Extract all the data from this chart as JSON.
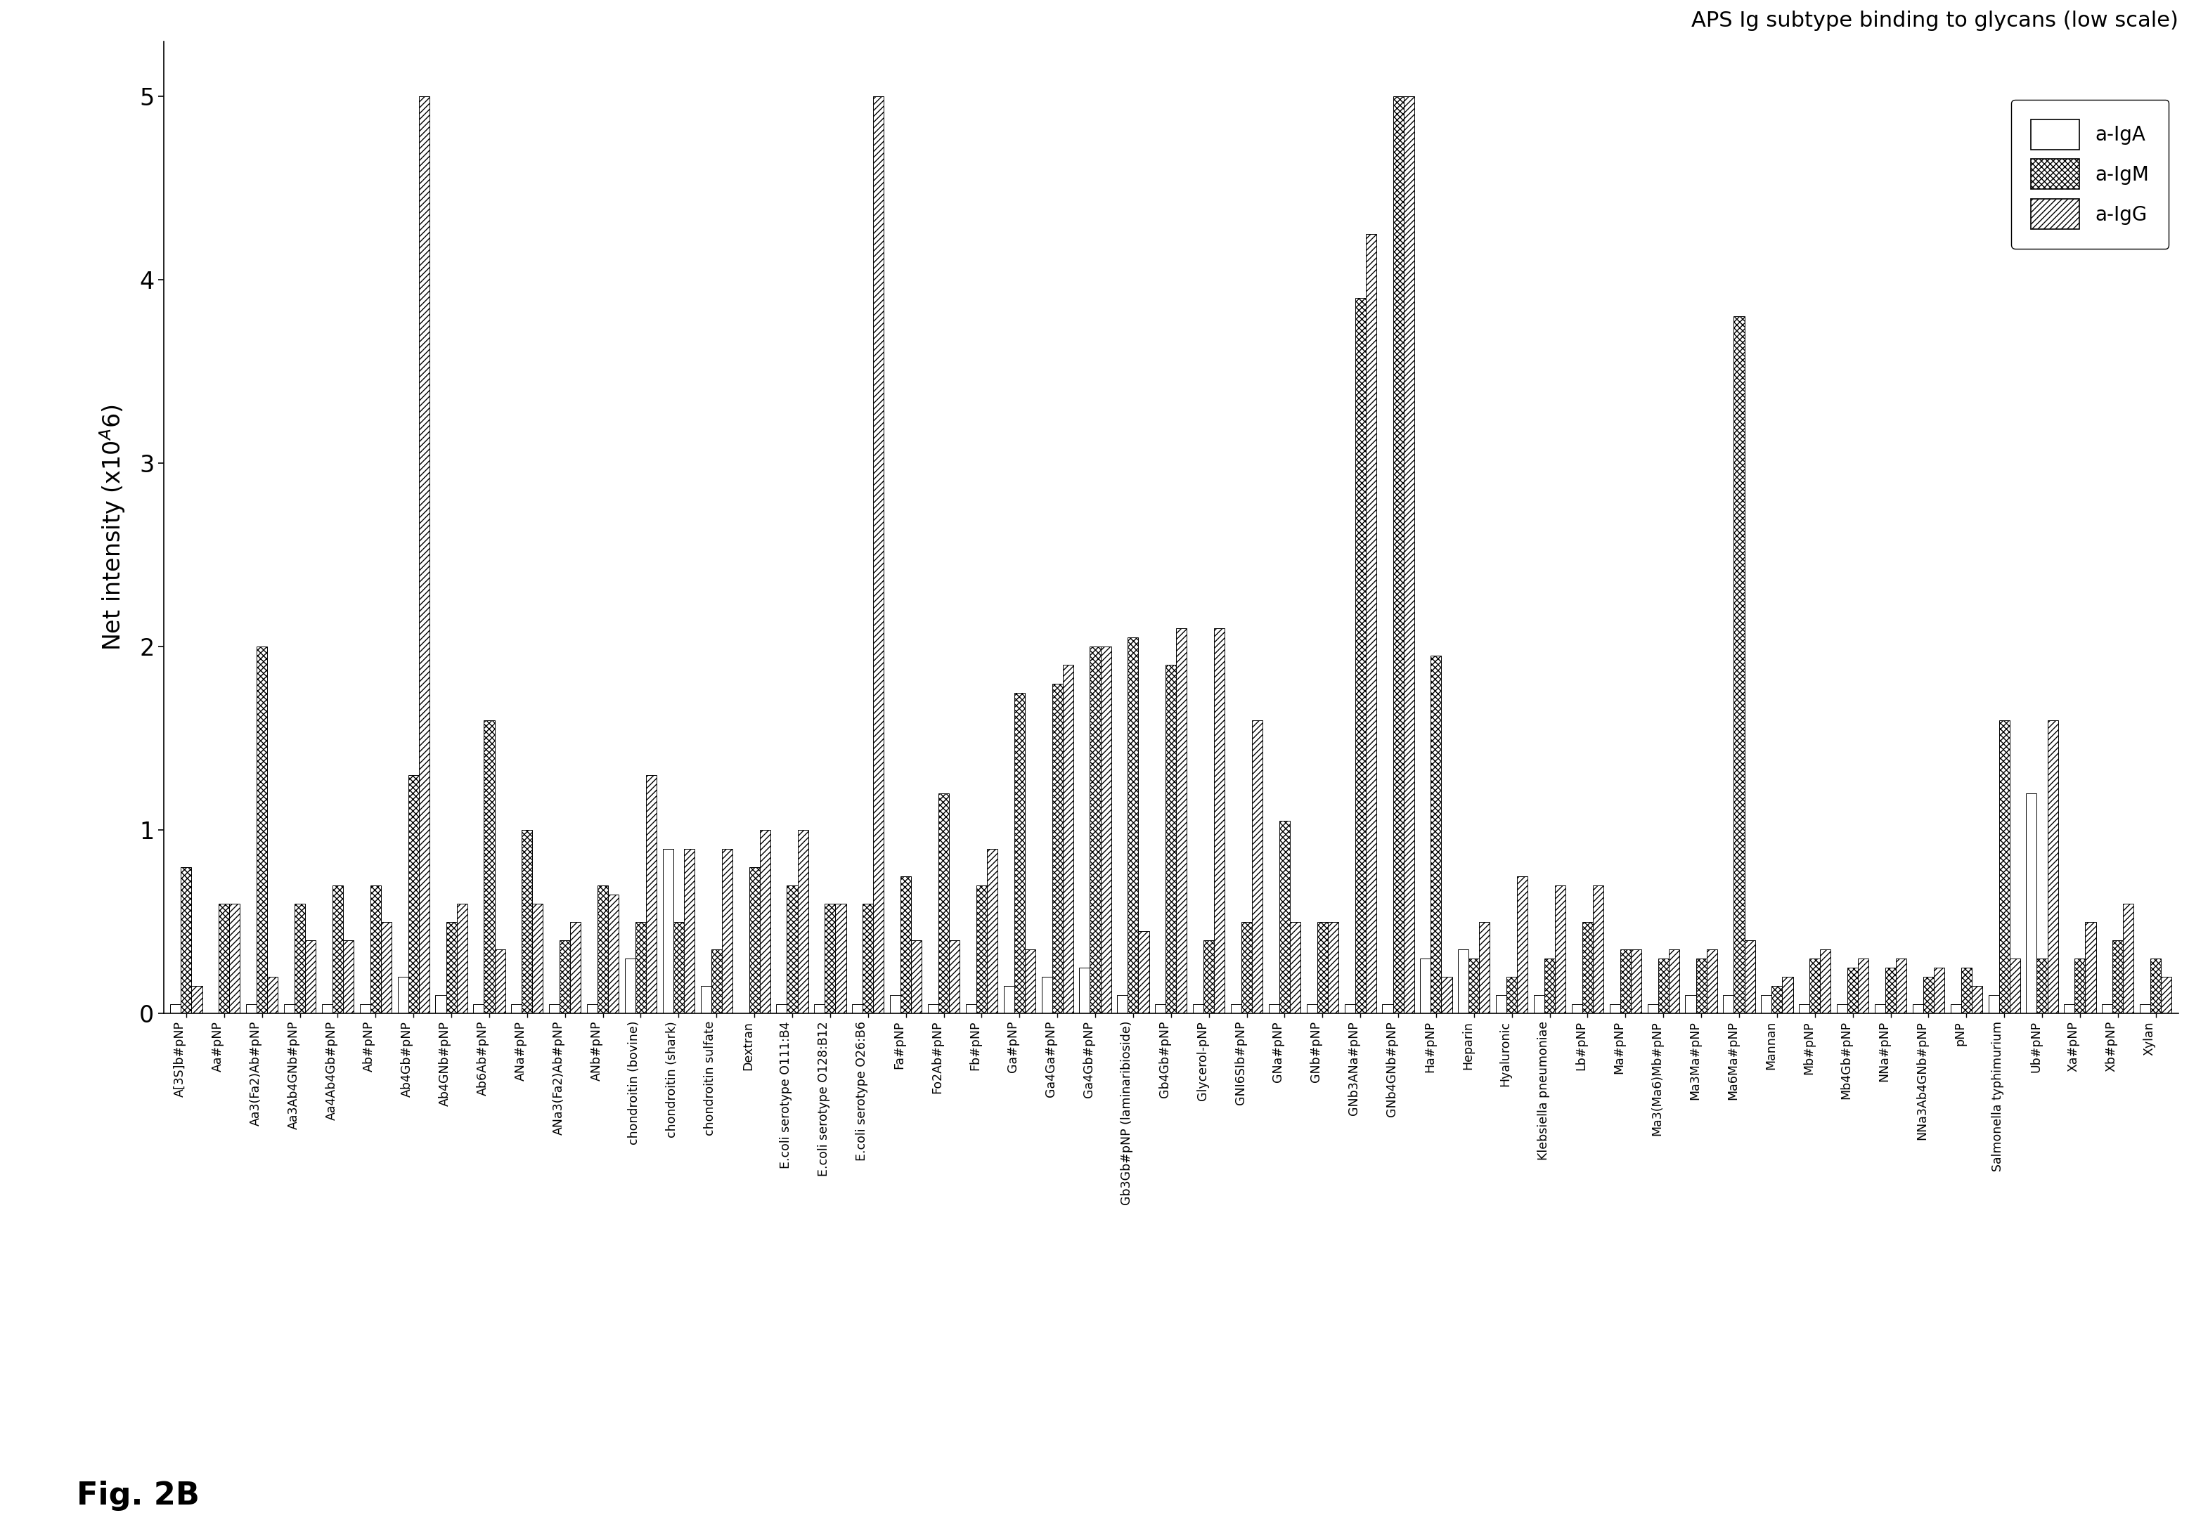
{
  "title": "APS Ig subtype binding to glycans (low scale)",
  "ylabel": "Net intensity (x10ᴬ6)",
  "ylim": [
    0,
    5.3
  ],
  "yticks": [
    0,
    1,
    2,
    3,
    4,
    5
  ],
  "legend_labels": [
    "a-IgA",
    "a-IgM",
    "a-IgG"
  ],
  "categories": [
    "A[3S]b#pNP",
    "Aa#pNP",
    "Aa3(Fa2)Ab#pNP",
    "Aa3Ab4GNb#pNP",
    "Aa4Ab4Gb#pNP",
    "Ab#pNP",
    "Ab4Gb#pNP",
    "Ab4GNb#pNP",
    "Ab6Ab#pNP",
    "ANa#pNP",
    "ANa3(Fa2)Ab#pNP",
    "ANb#pNP",
    "chondroitin (bovine)",
    "chondroitin (shark)",
    "chondroitin sulfate",
    "Dextran",
    "E.coli serotype O111:B4",
    "E.coli serotype O128:B12",
    "E.coli serotype O26:B6",
    "Fa#pNP",
    "Fo2Ab#pNP",
    "Fb#pNP",
    "Ga#pNP",
    "Ga4Ga#pNP",
    "Ga4Gb#pNP",
    "Gb3Gb#pNP (laminaribioside)",
    "Gb4Gb#pNP",
    "Glycerol-pNP",
    "GNI6SIb#pNP",
    "GNa#pNP",
    "GNb#pNP",
    "GNb3ANa#pNP",
    "GNb4GNb#pNP",
    "Ha#pNP",
    "Heparin",
    "Hyaluronic",
    "Klebsiella pneumoniae",
    "Lb#pNP",
    "Ma#pNP",
    "Ma3(Ma6)Mb#pNP",
    "Ma3Ma#pNP",
    "Ma6Ma#pNP",
    "Mannan",
    "Mb#pNP",
    "Mb4Gb#pNP",
    "NNa#pNP",
    "NNa3Ab4GNb#pNP",
    "pNP",
    "Salmonella typhimurium",
    "Ub#pNP",
    "Xa#pNP",
    "Xb#pNP",
    "Xylan"
  ],
  "IgA": [
    0.05,
    0.0,
    0.05,
    0.05,
    0.05,
    0.05,
    0.2,
    0.1,
    0.05,
    0.05,
    0.05,
    0.05,
    0.3,
    0.9,
    0.15,
    0.0,
    0.05,
    0.05,
    0.05,
    0.1,
    0.05,
    0.05,
    0.15,
    0.2,
    0.25,
    0.1,
    0.05,
    0.05,
    0.05,
    0.05,
    0.05,
    0.05,
    0.05,
    0.3,
    0.35,
    0.1,
    0.1,
    0.05,
    0.05,
    0.05,
    0.1,
    0.1,
    0.1,
    0.05,
    0.05,
    0.05,
    0.05,
    0.05,
    0.1,
    1.2,
    0.05,
    0.05,
    0.05
  ],
  "IgM": [
    0.8,
    0.6,
    2.0,
    0.6,
    0.7,
    0.7,
    1.3,
    0.5,
    1.6,
    1.0,
    0.4,
    0.7,
    0.5,
    0.5,
    0.35,
    0.8,
    0.7,
    0.6,
    0.6,
    0.75,
    1.2,
    0.7,
    1.75,
    1.8,
    2.0,
    2.05,
    1.9,
    0.4,
    0.5,
    1.05,
    0.5,
    3.9,
    5.0,
    1.95,
    0.3,
    0.2,
    0.3,
    0.5,
    0.35,
    0.3,
    0.3,
    3.8,
    0.15,
    0.3,
    0.25,
    0.25,
    0.2,
    0.25,
    1.6,
    0.3,
    0.3,
    0.4,
    0.3
  ],
  "IgG": [
    0.15,
    0.6,
    0.2,
    0.4,
    0.4,
    0.5,
    5.0,
    0.6,
    0.35,
    0.6,
    0.5,
    0.65,
    1.3,
    0.9,
    0.9,
    1.0,
    1.0,
    0.6,
    5.0,
    0.4,
    0.4,
    0.9,
    0.35,
    1.9,
    2.0,
    0.45,
    2.1,
    2.1,
    1.6,
    0.5,
    0.5,
    4.25,
    5.0,
    0.2,
    0.5,
    0.75,
    0.7,
    0.7,
    0.35,
    0.35,
    0.35,
    0.4,
    0.2,
    0.35,
    0.3,
    0.3,
    0.25,
    0.15,
    0.3,
    1.6,
    0.5,
    0.6,
    0.2
  ]
}
